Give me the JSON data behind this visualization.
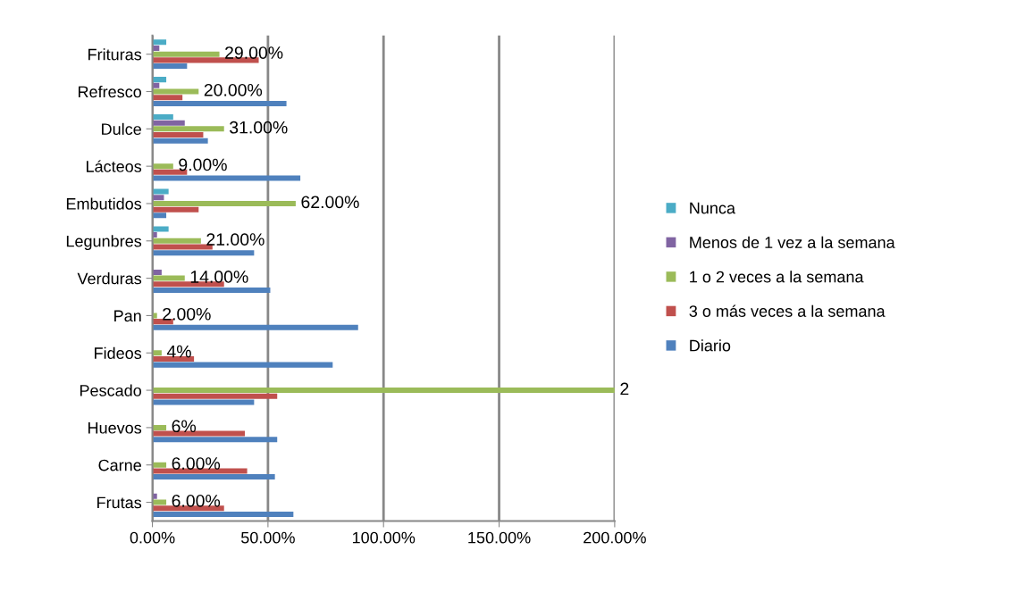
{
  "chart_data": {
    "type": "bar",
    "orientation": "horizontal",
    "categories": [
      "Frituras",
      "Refresco",
      "Dulce",
      "Lácteos",
      "Embutidos",
      "Legunbres",
      "Verduras",
      "Pan",
      "Fideos",
      "Pescado",
      "Huevos",
      "Carne",
      "Frutas"
    ],
    "series": [
      {
        "name": "Diario",
        "color": "#4f81bd",
        "values": [
          0.15,
          0.58,
          0.24,
          0.64,
          0.06,
          0.44,
          0.51,
          0.89,
          0.78,
          0.44,
          0.54,
          0.53,
          0.61
        ]
      },
      {
        "name": "3 o más veces a la semana",
        "color": "#c0504d",
        "values": [
          0.46,
          0.13,
          0.22,
          0.15,
          0.2,
          0.26,
          0.31,
          0.09,
          0.18,
          0.54,
          0.4,
          0.41,
          0.31
        ]
      },
      {
        "name": "1 o 2 veces a la semana",
        "color": "#9bbb59",
        "values": [
          0.29,
          0.2,
          0.31,
          0.09,
          0.62,
          0.21,
          0.14,
          0.02,
          0.04,
          2,
          0.06,
          0.06,
          0.06
        ],
        "value_labels": [
          "29.00%",
          "20.00%",
          "31.00%",
          "9.00%",
          "62.00%",
          "21.00%",
          "14.00%",
          "2.00%",
          "4%",
          "2",
          "6%",
          "6.00%",
          "6.00%"
        ]
      },
      {
        "name": "Menos de 1 vez a la semana",
        "color": "#8064a2",
        "values": [
          0.03,
          0.03,
          0.14,
          null,
          0.05,
          0.02,
          0.04,
          null,
          null,
          null,
          null,
          null,
          0.02
        ]
      },
      {
        "name": "Nunca",
        "color": "#4bacc6",
        "values": [
          0.06,
          0.06,
          0.09,
          null,
          0.07,
          0.07,
          null,
          null,
          null,
          null,
          null,
          null,
          null
        ]
      }
    ],
    "xlim": [
      0,
      2
    ],
    "xticks": [
      {
        "value": 0,
        "label": "0.00%"
      },
      {
        "value": 0.5,
        "label": "50.00%"
      },
      {
        "value": 1,
        "label": "100.00%"
      },
      {
        "value": 1.5,
        "label": "150.00%"
      },
      {
        "value": 2,
        "label": "200.00%"
      }
    ],
    "grid": "x",
    "legend": "right"
  }
}
